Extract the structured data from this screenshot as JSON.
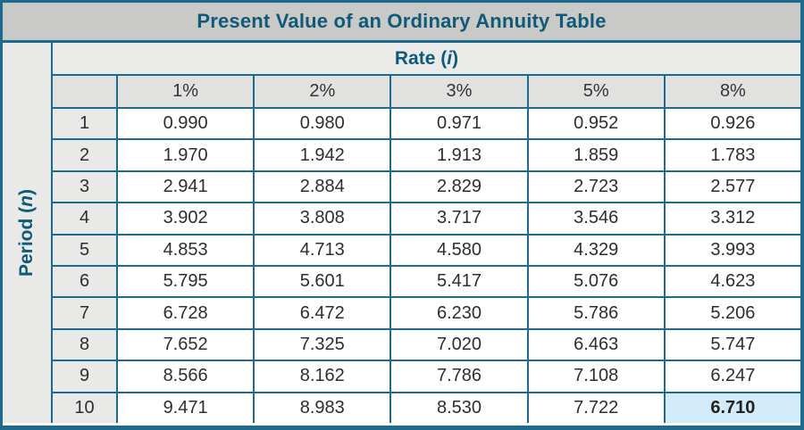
{
  "title": "Present Value of an Ordinary Annuity Table",
  "row_axis": {
    "prefix": "Period (",
    "var": "n",
    "suffix": ")"
  },
  "col_axis": {
    "prefix": "Rate (",
    "var": "i",
    "suffix": ")"
  },
  "colors": {
    "accent_teal_border": "#1d6b8c",
    "header_text_teal": "#0f5a78",
    "title_bar_bg": "#c9c9c8",
    "rate_row_bg": "#eaeae8",
    "percent_row_bg": "#e1e1df",
    "period_column_bg": "#e9e9e7",
    "data_cell_bg": "#ffffff",
    "highlight_cell_bg": "#d3eaf8",
    "data_text": "#2e2e2e"
  },
  "chart_data": {
    "type": "table",
    "title": "Present Value of an Ordinary Annuity Table",
    "row_header": "Period (n)",
    "col_header": "Rate (i)",
    "columns": [
      "1%",
      "2%",
      "3%",
      "5%",
      "8%"
    ],
    "rows": [
      {
        "period": "1",
        "values": [
          "0.990",
          "0.980",
          "0.971",
          "0.952",
          "0.926"
        ]
      },
      {
        "period": "2",
        "values": [
          "1.970",
          "1.942",
          "1.913",
          "1.859",
          "1.783"
        ]
      },
      {
        "period": "3",
        "values": [
          "2.941",
          "2.884",
          "2.829",
          "2.723",
          "2.577"
        ]
      },
      {
        "period": "4",
        "values": [
          "3.902",
          "3.808",
          "3.717",
          "3.546",
          "3.312"
        ]
      },
      {
        "period": "5",
        "values": [
          "4.853",
          "4.713",
          "4.580",
          "4.329",
          "3.993"
        ]
      },
      {
        "period": "6",
        "values": [
          "5.795",
          "5.601",
          "5.417",
          "5.076",
          "4.623"
        ]
      },
      {
        "period": "7",
        "values": [
          "6.728",
          "6.472",
          "6.230",
          "5.786",
          "5.206"
        ]
      },
      {
        "period": "8",
        "values": [
          "7.652",
          "7.325",
          "7.020",
          "6.463",
          "5.747"
        ]
      },
      {
        "period": "9",
        "values": [
          "8.566",
          "8.162",
          "7.786",
          "7.108",
          "6.247"
        ]
      },
      {
        "period": "10",
        "values": [
          "9.471",
          "8.983",
          "8.530",
          "7.722",
          "6.710"
        ]
      }
    ],
    "highlight": {
      "row_index": 9,
      "col_index": 4,
      "period": "10",
      "column": "8%",
      "value": "6.710"
    }
  }
}
